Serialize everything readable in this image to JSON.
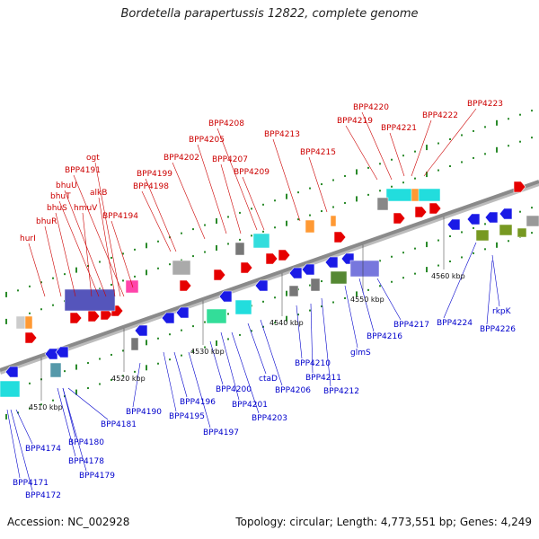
{
  "title": "Bordetella parapertussis 12822, complete genome",
  "footer": {
    "accession": "Accession: NC_002928",
    "summary": "Topology: circular; Length: 4,773,551 bp; Genes: 4,249"
  },
  "colors": {
    "forward_label": "#cc0000",
    "reverse_label": "#0000cc",
    "backbone": "#8a8a8a",
    "tick": "#2a8a2a"
  },
  "scale_labels": [
    "4510 kbp",
    "4520 kbp",
    "4530 kbp",
    "4540 kbp",
    "4550 kbp",
    "4560 kbp"
  ],
  "forward_labels": [
    "hurI",
    "bhuR",
    "bhuS",
    "hmuV",
    "bhuT",
    "bhuU",
    "alkB",
    "ogt",
    "BPP4191",
    "BPP4194",
    "BPP4198",
    "BPP4199",
    "BPP4202",
    "BPP4205",
    "BPP4207",
    "BPP4208",
    "BPP4209",
    "BPP4213",
    "BPP4215",
    "BPP4219",
    "BPP4220",
    "BPP4221",
    "BPP4222",
    "BPP4223"
  ],
  "reverse_labels": [
    "BPP4171",
    "BPP4172",
    "BPP4174",
    "BPP4178",
    "BPP4179",
    "BPP4180",
    "BPP4181",
    "BPP4190",
    "BPP4195",
    "BPP4196",
    "BPP4197",
    "BPP4200",
    "BPP4201",
    "BPP4203",
    "ctaD",
    "BPP4206",
    "BPP4210",
    "BPP4211",
    "BPP4212",
    "glmS",
    "BPP4216",
    "BPP4217",
    "BPP4224",
    "rkpK",
    "BPP4226"
  ]
}
